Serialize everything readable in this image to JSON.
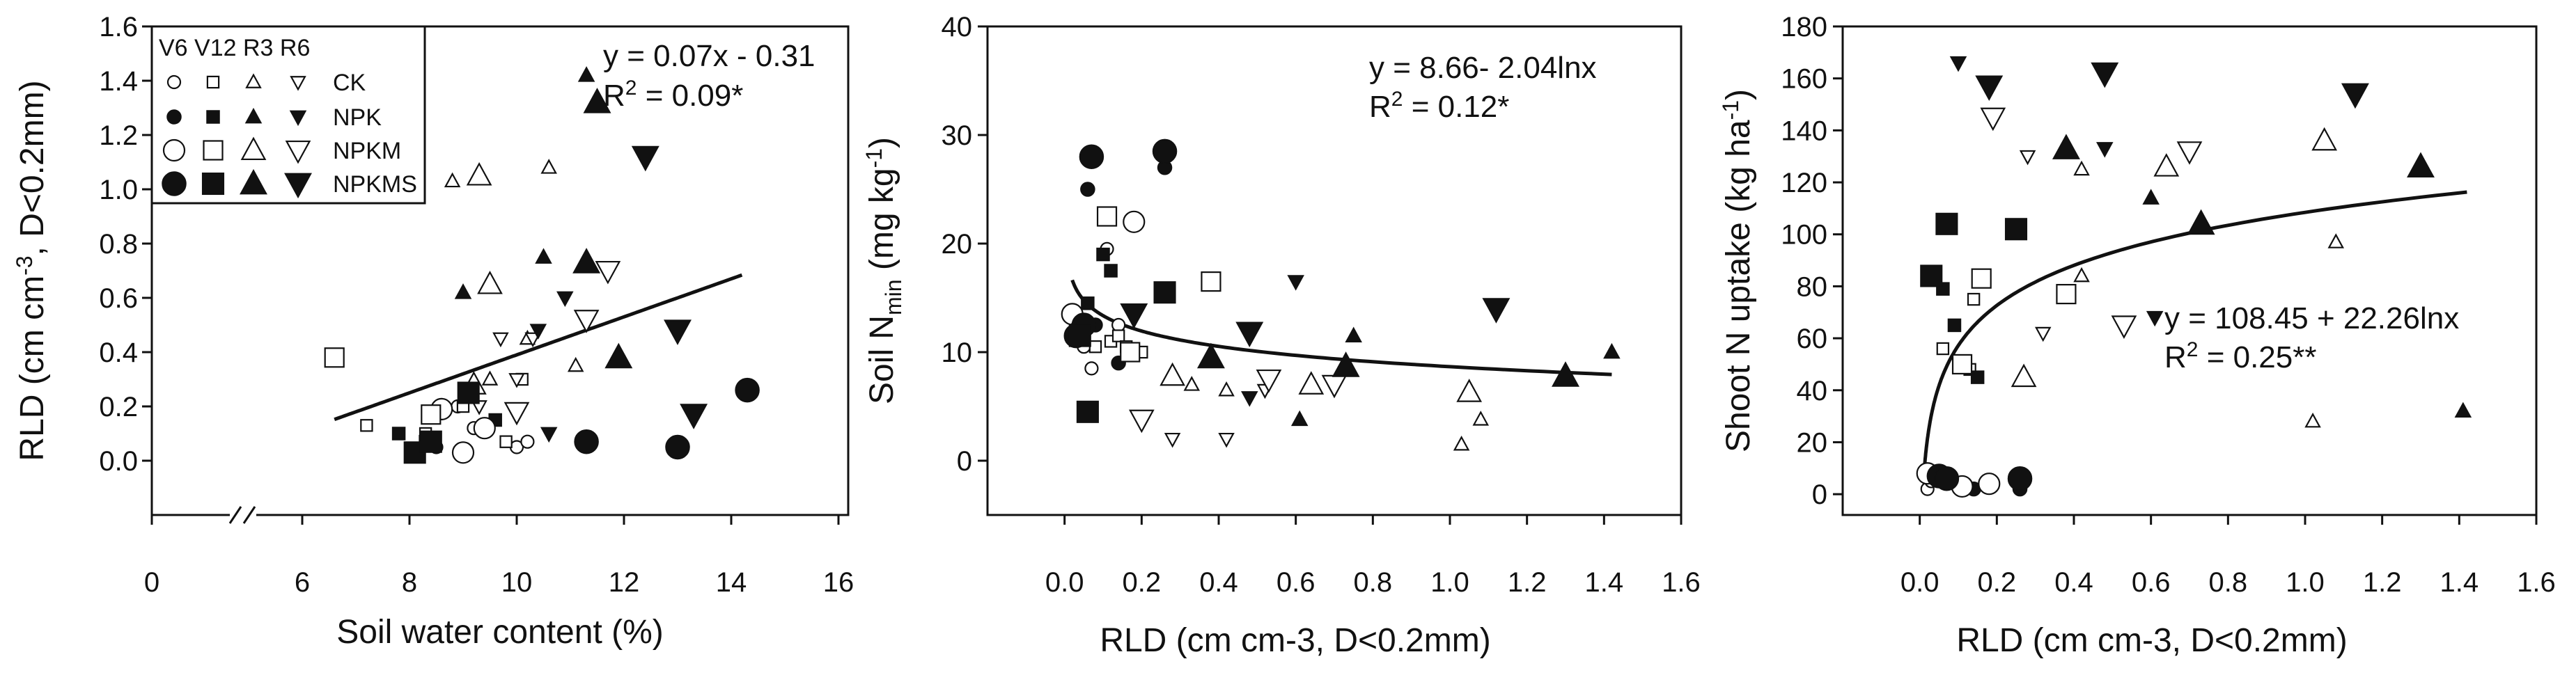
{
  "colors": {
    "ink": "#111111",
    "background": "#ffffff"
  },
  "legend": {
    "header": "V6 V12 R3 R6",
    "treatments": [
      "CK",
      "NPK",
      "NPKM",
      "NPKMS"
    ],
    "stages": [
      "V6",
      "V12",
      "R3",
      "R6"
    ],
    "shapes": [
      "circle",
      "square",
      "triangle-up",
      "triangle-down"
    ]
  },
  "chart_data": [
    {
      "type": "scatter",
      "id": "panel-a",
      "title": "",
      "xlabel": "Soil water content (%)",
      "ylabel_parts": {
        "main": "RLD (cm cm",
        "exp": "-3",
        "tail": ", D<0.2mm)"
      },
      "x_ticks": [
        "0",
        "6",
        "8",
        "10",
        "12",
        "14",
        "16"
      ],
      "y_ticks": [
        "0.0",
        "0.2",
        "0.4",
        "0.6",
        "0.8",
        "1.0",
        "1.2",
        "1.4",
        "1.6"
      ],
      "xlim": [
        6,
        16
      ],
      "ylim": [
        -0.2,
        1.6
      ],
      "axis_break": true,
      "equation": "y = 0.07x - 0.31",
      "r2_parts": {
        "label": "R",
        "exp": "2",
        "value": " = 0.09*"
      },
      "fit": {
        "kind": "linear",
        "slope": 0.07,
        "intercept": -0.31,
        "from": 6.6,
        "to": 14.2
      },
      "points": [
        {
          "x": 8.5,
          "y": 0.05,
          "t": "CK",
          "s": "V6"
        },
        {
          "x": 9.2,
          "y": 0.12,
          "t": "CK",
          "s": "V6"
        },
        {
          "x": 10.0,
          "y": 0.05,
          "t": "CK",
          "s": "V6"
        },
        {
          "x": 8.9,
          "y": 0.2,
          "t": "CK",
          "s": "V6"
        },
        {
          "x": 10.2,
          "y": 0.07,
          "t": "CK",
          "s": "V6"
        },
        {
          "x": 7.2,
          "y": 0.13,
          "t": "CK",
          "s": "V12"
        },
        {
          "x": 8.3,
          "y": 0.1,
          "t": "CK",
          "s": "V12"
        },
        {
          "x": 9.0,
          "y": 0.2,
          "t": "CK",
          "s": "V12"
        },
        {
          "x": 9.8,
          "y": 0.07,
          "t": "CK",
          "s": "V12"
        },
        {
          "x": 10.1,
          "y": 0.3,
          "t": "CK",
          "s": "V12"
        },
        {
          "x": 8.8,
          "y": 1.03,
          "t": "CK",
          "s": "R3"
        },
        {
          "x": 10.6,
          "y": 1.08,
          "t": "CK",
          "s": "R3"
        },
        {
          "x": 10.2,
          "y": 0.45,
          "t": "CK",
          "s": "R3"
        },
        {
          "x": 9.5,
          "y": 0.3,
          "t": "CK",
          "s": "R3"
        },
        {
          "x": 11.1,
          "y": 0.35,
          "t": "CK",
          "s": "R3"
        },
        {
          "x": 9.7,
          "y": 0.45,
          "t": "CK",
          "s": "R6"
        },
        {
          "x": 10.0,
          "y": 0.3,
          "t": "CK",
          "s": "R6"
        },
        {
          "x": 10.3,
          "y": 0.45,
          "t": "CK",
          "s": "R6"
        },
        {
          "x": 9.3,
          "y": 0.2,
          "t": "CK",
          "s": "R6"
        },
        {
          "x": 7.8,
          "y": 0.1,
          "t": "NPK",
          "s": "V12"
        },
        {
          "x": 9.6,
          "y": 0.15,
          "t": "NPK",
          "s": "V12"
        },
        {
          "x": 8.3,
          "y": 0.07,
          "t": "NPK",
          "s": "V12"
        },
        {
          "x": 9.0,
          "y": 0.62,
          "t": "NPK",
          "s": "R3"
        },
        {
          "x": 10.5,
          "y": 0.75,
          "t": "NPK",
          "s": "R3"
        },
        {
          "x": 11.3,
          "y": 1.42,
          "t": "NPK",
          "s": "R3"
        },
        {
          "x": 10.9,
          "y": 0.6,
          "t": "NPK",
          "s": "R6"
        },
        {
          "x": 10.4,
          "y": 0.48,
          "t": "NPK",
          "s": "R6"
        },
        {
          "x": 10.6,
          "y": 0.1,
          "t": "NPK",
          "s": "R6"
        },
        {
          "x": 9.0,
          "y": 0.03,
          "t": "NPKM",
          "s": "V6"
        },
        {
          "x": 9.4,
          "y": 0.12,
          "t": "NPKM",
          "s": "V6"
        },
        {
          "x": 8.6,
          "y": 0.19,
          "t": "NPKM",
          "s": "V6"
        },
        {
          "x": 6.6,
          "y": 0.38,
          "t": "NPKM",
          "s": "V12"
        },
        {
          "x": 8.4,
          "y": 0.17,
          "t": "NPKM",
          "s": "V12"
        },
        {
          "x": 9.3,
          "y": 1.05,
          "t": "NPKM",
          "s": "R3"
        },
        {
          "x": 9.5,
          "y": 0.65,
          "t": "NPKM",
          "s": "R3"
        },
        {
          "x": 9.2,
          "y": 0.28,
          "t": "NPKM",
          "s": "R3"
        },
        {
          "x": 11.7,
          "y": 0.7,
          "t": "NPKM",
          "s": "R6"
        },
        {
          "x": 11.3,
          "y": 0.52,
          "t": "NPKM",
          "s": "R6"
        },
        {
          "x": 10.0,
          "y": 0.18,
          "t": "NPKM",
          "s": "R6"
        },
        {
          "x": 11.3,
          "y": 0.07,
          "t": "NPKMS",
          "s": "V6"
        },
        {
          "x": 13.0,
          "y": 0.05,
          "t": "NPKMS",
          "s": "V6"
        },
        {
          "x": 14.3,
          "y": 0.26,
          "t": "NPKMS",
          "s": "V6"
        },
        {
          "x": 8.1,
          "y": 0.03,
          "t": "NPKMS",
          "s": "V12"
        },
        {
          "x": 8.4,
          "y": 0.07,
          "t": "NPKMS",
          "s": "V12"
        },
        {
          "x": 9.1,
          "y": 0.25,
          "t": "NPKMS",
          "s": "V12"
        },
        {
          "x": 11.5,
          "y": 1.32,
          "t": "NPKMS",
          "s": "R3"
        },
        {
          "x": 11.3,
          "y": 0.73,
          "t": "NPKMS",
          "s": "R3"
        },
        {
          "x": 11.9,
          "y": 0.38,
          "t": "NPKMS",
          "s": "R3"
        },
        {
          "x": 12.4,
          "y": 1.12,
          "t": "NPKMS",
          "s": "R6"
        },
        {
          "x": 13.0,
          "y": 0.48,
          "t": "NPKMS",
          "s": "R6"
        },
        {
          "x": 13.3,
          "y": 0.17,
          "t": "NPKMS",
          "s": "R6"
        }
      ]
    },
    {
      "type": "scatter",
      "id": "panel-b",
      "title": "",
      "xlabel": "RLD (cm cm-3, D<0.2mm)",
      "ylabel_parts": {
        "main": "Soil N",
        "sub": "min",
        "tail": " (mg kg",
        "exp": "-1",
        "end": ")"
      },
      "x_ticks": [
        "0.0",
        "0.2",
        "0.4",
        "0.6",
        "0.8",
        "1.0",
        "1.2",
        "1.4",
        "1.6"
      ],
      "y_ticks": [
        "0",
        "10",
        "20",
        "30",
        "40"
      ],
      "xlim": [
        -0.2,
        1.6
      ],
      "ylim": [
        -5,
        40
      ],
      "equation": "y = 8.66- 2.04lnx",
      "r2_parts": {
        "label": "R",
        "exp": "2",
        "value": " = 0.12*"
      },
      "fit": {
        "kind": "log",
        "a": 8.66,
        "b": -2.04,
        "from": 0.02,
        "to": 1.42
      },
      "points": [
        {
          "x": 0.04,
          "y": 11.5,
          "t": "CK",
          "s": "V6"
        },
        {
          "x": 0.05,
          "y": 10.5,
          "t": "CK",
          "s": "V6"
        },
        {
          "x": 0.07,
          "y": 8.5,
          "t": "CK",
          "s": "V6"
        },
        {
          "x": 0.11,
          "y": 19.5,
          "t": "CK",
          "s": "V6"
        },
        {
          "x": 0.14,
          "y": 12.5,
          "t": "CK",
          "s": "V6"
        },
        {
          "x": 0.08,
          "y": 10.5,
          "t": "CK",
          "s": "V12"
        },
        {
          "x": 0.12,
          "y": 11.0,
          "t": "CK",
          "s": "V12"
        },
        {
          "x": 0.14,
          "y": 11.5,
          "t": "CK",
          "s": "V12"
        },
        {
          "x": 0.16,
          "y": 10.5,
          "t": "CK",
          "s": "V12"
        },
        {
          "x": 0.2,
          "y": 10.0,
          "t": "CK",
          "s": "V12"
        },
        {
          "x": 0.42,
          "y": 6.5,
          "t": "CK",
          "s": "R3"
        },
        {
          "x": 0.33,
          "y": 7.0,
          "t": "CK",
          "s": "R3"
        },
        {
          "x": 1.03,
          "y": 1.5,
          "t": "CK",
          "s": "R3"
        },
        {
          "x": 1.08,
          "y": 3.8,
          "t": "CK",
          "s": "R3"
        },
        {
          "x": 0.28,
          "y": 2.0,
          "t": "CK",
          "s": "R6"
        },
        {
          "x": 0.42,
          "y": 2.0,
          "t": "CK",
          "s": "R6"
        },
        {
          "x": 0.52,
          "y": 6.5,
          "t": "CK",
          "s": "R6"
        },
        {
          "x": 0.06,
          "y": 25.0,
          "t": "NPK",
          "s": "V6"
        },
        {
          "x": 0.08,
          "y": 12.5,
          "t": "NPK",
          "s": "V6"
        },
        {
          "x": 0.26,
          "y": 27.0,
          "t": "NPK",
          "s": "V6"
        },
        {
          "x": 0.14,
          "y": 9.0,
          "t": "NPK",
          "s": "V6"
        },
        {
          "x": 0.1,
          "y": 19.0,
          "t": "NPK",
          "s": "V12"
        },
        {
          "x": 0.06,
          "y": 14.5,
          "t": "NPK",
          "s": "V12"
        },
        {
          "x": 0.12,
          "y": 17.5,
          "t": "NPK",
          "s": "V12"
        },
        {
          "x": 0.61,
          "y": 3.8,
          "t": "NPK",
          "s": "R3"
        },
        {
          "x": 0.75,
          "y": 11.5,
          "t": "NPK",
          "s": "R3"
        },
        {
          "x": 1.42,
          "y": 10.0,
          "t": "NPK",
          "s": "R3"
        },
        {
          "x": 0.6,
          "y": 16.5,
          "t": "NPK",
          "s": "R6"
        },
        {
          "x": 0.48,
          "y": 5.8,
          "t": "NPK",
          "s": "R6"
        },
        {
          "x": 0.02,
          "y": 13.5,
          "t": "NPKM",
          "s": "V6"
        },
        {
          "x": 0.04,
          "y": 12.0,
          "t": "NPKM",
          "s": "V6"
        },
        {
          "x": 0.18,
          "y": 22.0,
          "t": "NPKM",
          "s": "V6"
        },
        {
          "x": 0.11,
          "y": 22.5,
          "t": "NPKM",
          "s": "V12"
        },
        {
          "x": 0.17,
          "y": 10.0,
          "t": "NPKM",
          "s": "V12"
        },
        {
          "x": 0.38,
          "y": 16.5,
          "t": "NPKM",
          "s": "V12"
        },
        {
          "x": 0.28,
          "y": 7.8,
          "t": "NPKM",
          "s": "R3"
        },
        {
          "x": 0.64,
          "y": 7.0,
          "t": "NPKM",
          "s": "R3"
        },
        {
          "x": 1.05,
          "y": 6.3,
          "t": "NPKM",
          "s": "R3"
        },
        {
          "x": 0.2,
          "y": 3.8,
          "t": "NPKM",
          "s": "R6"
        },
        {
          "x": 0.53,
          "y": 7.5,
          "t": "NPKM",
          "s": "R6"
        },
        {
          "x": 0.7,
          "y": 7.0,
          "t": "NPKM",
          "s": "R6"
        },
        {
          "x": 0.07,
          "y": 28.0,
          "t": "NPKMS",
          "s": "V6"
        },
        {
          "x": 0.26,
          "y": 28.5,
          "t": "NPKMS",
          "s": "V6"
        },
        {
          "x": 0.05,
          "y": 12.5,
          "t": "NPKMS",
          "s": "V6"
        },
        {
          "x": 0.03,
          "y": 11.5,
          "t": "NPKMS",
          "s": "V6"
        },
        {
          "x": 0.06,
          "y": 4.5,
          "t": "NPKMS",
          "s": "V12"
        },
        {
          "x": 0.26,
          "y": 15.5,
          "t": "NPKMS",
          "s": "V12"
        },
        {
          "x": 0.04,
          "y": 11.5,
          "t": "NPKMS",
          "s": "V12"
        },
        {
          "x": 0.38,
          "y": 9.5,
          "t": "NPKMS",
          "s": "R3"
        },
        {
          "x": 0.73,
          "y": 8.7,
          "t": "NPKMS",
          "s": "R3"
        },
        {
          "x": 1.3,
          "y": 7.8,
          "t": "NPKMS",
          "s": "R3"
        },
        {
          "x": 0.18,
          "y": 13.5,
          "t": "NPKMS",
          "s": "R6"
        },
        {
          "x": 0.48,
          "y": 11.8,
          "t": "NPKMS",
          "s": "R6"
        },
        {
          "x": 1.12,
          "y": 14.0,
          "t": "NPKMS",
          "s": "R6"
        }
      ]
    },
    {
      "type": "scatter",
      "id": "panel-c",
      "title": "",
      "xlabel": "RLD (cm cm-3, D<0.2mm)",
      "ylabel_parts": {
        "main": "Shoot N uptake (kg ha",
        "exp": "-1",
        "end": ")"
      },
      "x_ticks": [
        "0.0",
        "0.2",
        "0.4",
        "0.6",
        "0.8",
        "1.0",
        "1.2",
        "1.4",
        "1.6"
      ],
      "y_ticks": [
        "0",
        "20",
        "40",
        "60",
        "80",
        "100",
        "120",
        "140",
        "160",
        "180"
      ],
      "xlim": [
        -0.2,
        1.6
      ],
      "ylim": [
        -8,
        180
      ],
      "equation": "y = 108.45 + 22.26lnx",
      "r2_parts": {
        "label": "R",
        "exp": "2",
        "value": " = 0.25**"
      },
      "fit": {
        "kind": "log",
        "a": 108.45,
        "b": 22.26,
        "from": 0.013,
        "to": 1.42
      },
      "points": [
        {
          "x": 0.02,
          "y": 2,
          "t": "CK",
          "s": "V6"
        },
        {
          "x": 0.03,
          "y": 5,
          "t": "CK",
          "s": "V6"
        },
        {
          "x": 0.07,
          "y": 6,
          "t": "CK",
          "s": "V6"
        },
        {
          "x": 0.1,
          "y": 4,
          "t": "CK",
          "s": "V6"
        },
        {
          "x": 0.06,
          "y": 56,
          "t": "CK",
          "s": "V12"
        },
        {
          "x": 0.14,
          "y": 75,
          "t": "CK",
          "s": "V12"
        },
        {
          "x": 0.13,
          "y": 48,
          "t": "CK",
          "s": "V12"
        },
        {
          "x": 1.02,
          "y": 28,
          "t": "CK",
          "s": "R3"
        },
        {
          "x": 0.42,
          "y": 125,
          "t": "CK",
          "s": "R3"
        },
        {
          "x": 0.42,
          "y": 84,
          "t": "CK",
          "s": "R3"
        },
        {
          "x": 1.08,
          "y": 97,
          "t": "CK",
          "s": "R3"
        },
        {
          "x": 0.28,
          "y": 130,
          "t": "CK",
          "s": "R6"
        },
        {
          "x": 0.32,
          "y": 62,
          "t": "CK",
          "s": "R6"
        },
        {
          "x": 0.14,
          "y": 2,
          "t": "NPK",
          "s": "V6"
        },
        {
          "x": 0.26,
          "y": 2,
          "t": "NPK",
          "s": "V6"
        },
        {
          "x": 0.06,
          "y": 79,
          "t": "NPK",
          "s": "V12"
        },
        {
          "x": 0.15,
          "y": 45,
          "t": "NPK",
          "s": "V12"
        },
        {
          "x": 0.09,
          "y": 65,
          "t": "NPK",
          "s": "V12"
        },
        {
          "x": 0.6,
          "y": 114,
          "t": "NPK",
          "s": "R3"
        },
        {
          "x": 1.41,
          "y": 32,
          "t": "NPK",
          "s": "R3"
        },
        {
          "x": 0.1,
          "y": 166,
          "t": "NPK",
          "s": "R6"
        },
        {
          "x": 0.48,
          "y": 133,
          "t": "NPK",
          "s": "R6"
        },
        {
          "x": 0.61,
          "y": 68,
          "t": "NPK",
          "s": "R6"
        },
        {
          "x": 0.02,
          "y": 8,
          "t": "NPKM",
          "s": "V6"
        },
        {
          "x": 0.11,
          "y": 3,
          "t": "NPKM",
          "s": "V6"
        },
        {
          "x": 0.18,
          "y": 4,
          "t": "NPKM",
          "s": "V6"
        },
        {
          "x": 0.11,
          "y": 50,
          "t": "NPKM",
          "s": "V12"
        },
        {
          "x": 0.16,
          "y": 83,
          "t": "NPKM",
          "s": "V12"
        },
        {
          "x": 0.38,
          "y": 77,
          "t": "NPKM",
          "s": "V12"
        },
        {
          "x": 0.27,
          "y": 45,
          "t": "NPKM",
          "s": "R3"
        },
        {
          "x": 0.64,
          "y": 126,
          "t": "NPKM",
          "s": "R3"
        },
        {
          "x": 1.05,
          "y": 136,
          "t": "NPKM",
          "s": "R3"
        },
        {
          "x": 0.19,
          "y": 145,
          "t": "NPKM",
          "s": "R6"
        },
        {
          "x": 0.53,
          "y": 65,
          "t": "NPKM",
          "s": "R6"
        },
        {
          "x": 0.7,
          "y": 132,
          "t": "NPKM",
          "s": "R6"
        },
        {
          "x": 0.05,
          "y": 7,
          "t": "NPKMS",
          "s": "V6"
        },
        {
          "x": 0.07,
          "y": 6,
          "t": "NPKMS",
          "s": "V6"
        },
        {
          "x": 0.26,
          "y": 6,
          "t": "NPKMS",
          "s": "V6"
        },
        {
          "x": 0.03,
          "y": 84,
          "t": "NPKMS",
          "s": "V12"
        },
        {
          "x": 0.07,
          "y": 104,
          "t": "NPKMS",
          "s": "V12"
        },
        {
          "x": 0.25,
          "y": 102,
          "t": "NPKMS",
          "s": "V12"
        },
        {
          "x": 0.38,
          "y": 133,
          "t": "NPKMS",
          "s": "R3"
        },
        {
          "x": 0.73,
          "y": 104,
          "t": "NPKMS",
          "s": "R3"
        },
        {
          "x": 1.3,
          "y": 126,
          "t": "NPKMS",
          "s": "R3"
        },
        {
          "x": 0.18,
          "y": 157,
          "t": "NPKMS",
          "s": "R6"
        },
        {
          "x": 0.48,
          "y": 162,
          "t": "NPKMS",
          "s": "R6"
        },
        {
          "x": 1.13,
          "y": 154,
          "t": "NPKMS",
          "s": "R6"
        }
      ]
    }
  ]
}
